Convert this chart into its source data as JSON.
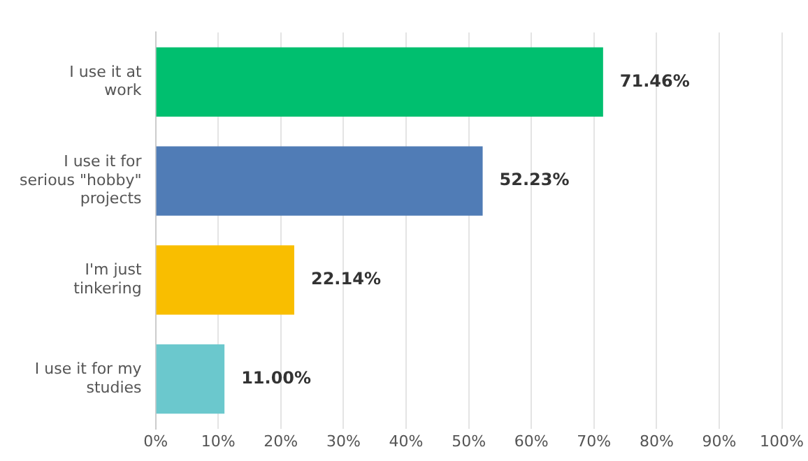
{
  "chart_data": {
    "type": "bar",
    "orientation": "horizontal",
    "categories": [
      "I use it at work",
      "I use it for serious \"hobby\" projects",
      "I'm just tinkering",
      "I use it for my studies"
    ],
    "values": [
      71.46,
      52.23,
      22.14,
      11.0
    ],
    "colors": [
      "#00bf6f",
      "#507cb6",
      "#f9be00",
      "#6bc8cd"
    ],
    "value_labels": [
      "71.46%",
      "52.23%",
      "22.14%",
      "11.00%"
    ],
    "xlim": [
      0,
      100
    ],
    "xticks": [
      {
        "value": 0,
        "label": "0%"
      },
      {
        "value": 10,
        "label": "10%"
      },
      {
        "value": 20,
        "label": "20%"
      },
      {
        "value": 30,
        "label": "30%"
      },
      {
        "value": 40,
        "label": "40%"
      },
      {
        "value": 50,
        "label": "50%"
      },
      {
        "value": 60,
        "label": "60%"
      },
      {
        "value": 70,
        "label": "70%"
      },
      {
        "value": 80,
        "label": "80%"
      },
      {
        "value": 90,
        "label": "90%"
      },
      {
        "value": 100,
        "label": "100%"
      }
    ],
    "grid": "x",
    "legend": false
  }
}
